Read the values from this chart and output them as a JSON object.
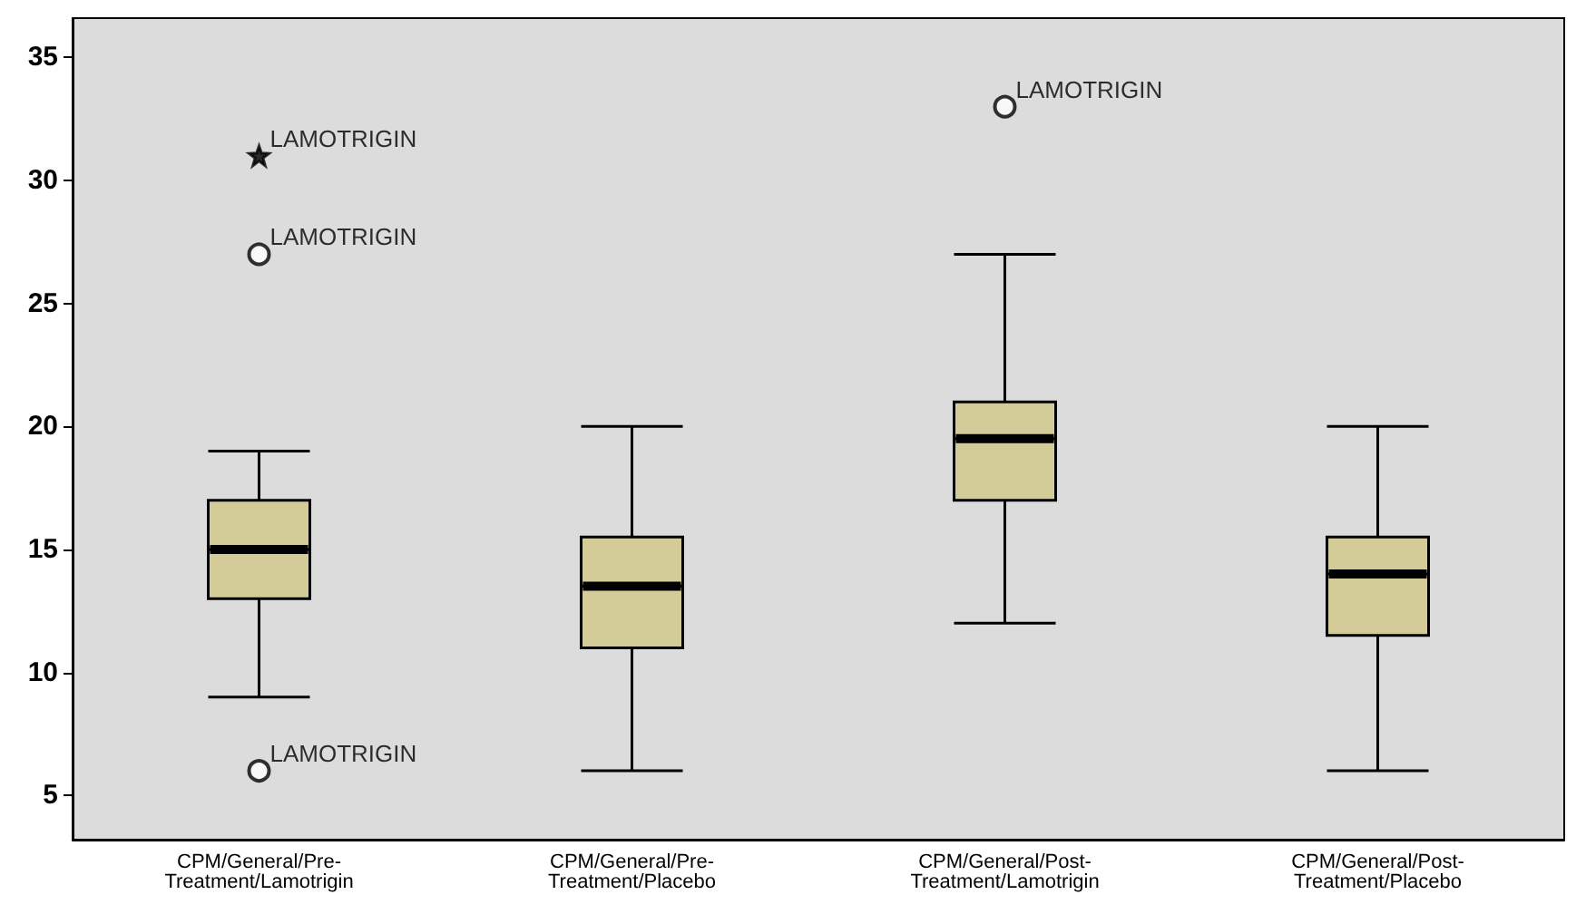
{
  "chart_data": {
    "type": "box",
    "categories": [
      "CPM/General/Pre-Treatment/Lamotrigin",
      "CPM/General/Pre-Treatment/Placebo",
      "CPM/General/Post-Treatment/Lamotrigin",
      "CPM/General/Post-Treatment/Placebo"
    ],
    "boxes": [
      {
        "low": 9,
        "q1": 13,
        "median": 15,
        "q3": 17,
        "high": 19
      },
      {
        "low": 6,
        "q1": 11,
        "median": 13.5,
        "q3": 15.5,
        "high": 20
      },
      {
        "low": 12,
        "q1": 17,
        "median": 19.5,
        "q3": 21,
        "high": 27
      },
      {
        "low": 6,
        "q1": 11.5,
        "median": 14,
        "q3": 15.5,
        "high": 20
      }
    ],
    "color": "#d4cc98",
    "series": [
      {
        "type": "scatter",
        "marker": "star",
        "color": "#000000",
        "x": [
          "CPM/General/Pre-Treatment/Lamotrigin"
        ],
        "values": [
          31
        ]
      },
      {
        "type": "scatter",
        "marker": "circle",
        "color": "#000000",
        "x": [
          "CPM/General/Pre-Treatment/Lamotrigin",
          "CPM/General/Pre-Treatment/Lamotrigin",
          "CPM/General/Post-Treatment/Lamotrigin"
        ],
        "values": [
          27,
          6,
          33
        ]
      }
    ],
    "annotations": [
      {
        "text": "LAMOTRIGIN",
        "x": "CPM/General/Pre-Treatment/Lamotrigin",
        "y": 31
      },
      {
        "text": "LAMOTRIGIN",
        "x": "CPM/General/Pre-Treatment/Lamotrigin",
        "y": 27
      },
      {
        "text": "LAMOTRIGIN",
        "x": "CPM/General/Pre-Treatment/Lamotrigin",
        "y": 6
      },
      {
        "text": "LAMOTRIGIN",
        "x": "CPM/General/Post-Treatment/Lamotrigin",
        "y": 33
      }
    ],
    "ylim": [
      3.2,
      36.6
    ],
    "yticks": [
      5,
      10,
      15,
      20,
      25,
      30,
      35
    ],
    "grid": false
  }
}
